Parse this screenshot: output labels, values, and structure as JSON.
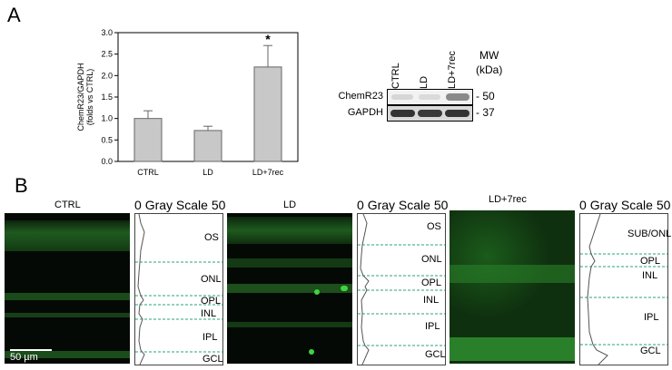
{
  "panel_a": {
    "letter": "A"
  },
  "panel_b": {
    "letter": "B"
  },
  "chart_data": {
    "type": "bar",
    "categories": [
      "CTRL",
      "LD",
      "LD+7rec"
    ],
    "values": [
      1.0,
      0.72,
      2.2
    ],
    "errors": [
      0.18,
      0.1,
      0.5
    ],
    "significance": [
      "",
      "",
      "*"
    ],
    "ylabel": "ChemR23/GAPDH\n(folds vs CTRL)",
    "ylabel_lines": [
      "ChemR23/GAPDH",
      "(folds vs CTRL)"
    ],
    "ylim": [
      0,
      3.0
    ],
    "yticks": [
      "0.0",
      "0.5",
      "1.0",
      "1.5",
      "2.0",
      "2.5",
      "3.0"
    ],
    "bar_color": "#c8c8c8",
    "grid": false
  },
  "blot": {
    "lanes": [
      "CTRL",
      "LD",
      "LD+7rec"
    ],
    "rows": [
      "ChemR23",
      "GAPDH"
    ],
    "mw_header": "MW",
    "mw_unit": "(kDa)",
    "mw_values": [
      "- 50",
      "- 37"
    ]
  },
  "images": [
    {
      "title": "CTRL",
      "gray_title": "Gray Scale",
      "scale_min": "0",
      "scale_max": "50",
      "layers": [
        "OS",
        "ONL",
        "OPL",
        "INL",
        "IPL",
        "GCL"
      ]
    },
    {
      "title": "LD",
      "gray_title": "Gray Scale",
      "scale_min": "0",
      "scale_max": "50",
      "layers": [
        "OS",
        "ONL",
        "OPL",
        "INL",
        "IPL",
        "GCL"
      ]
    },
    {
      "title": "LD+7rec",
      "gray_title": "Gray Scale",
      "scale_min": "0",
      "scale_max": "50",
      "layers": [
        "SUB/ONL",
        "OPL",
        "INL",
        "IPL",
        "GCL"
      ]
    }
  ],
  "scale_bar": "50 µm",
  "colors": {
    "fluor": "#2fbf2f",
    "dashed": "#2aa37a",
    "bar": "#c8c8c8"
  }
}
